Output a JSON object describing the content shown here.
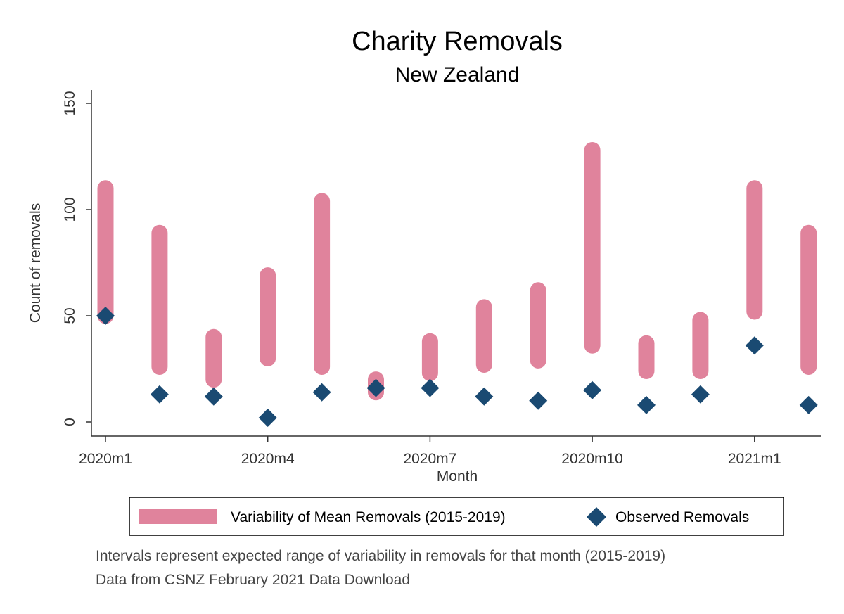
{
  "chart_data": {
    "type": "range-bar-with-scatter",
    "title": "Charity Removals",
    "subtitle": "New Zealand",
    "xlabel": "Month",
    "ylabel": "Count of removals",
    "ylim": [
      0,
      150
    ],
    "yticks": [
      0,
      50,
      100,
      150
    ],
    "xtick_labels": [
      {
        "index": 0,
        "label": "2020m1"
      },
      {
        "index": 3,
        "label": "2020m4"
      },
      {
        "index": 6,
        "label": "2020m7"
      },
      {
        "index": 9,
        "label": "2020m10"
      },
      {
        "index": 12,
        "label": "2021m1"
      }
    ],
    "categories": [
      "2020m1",
      "2020m2",
      "2020m3",
      "2020m4",
      "2020m5",
      "2020m6",
      "2020m7",
      "2020m8",
      "2020m9",
      "2020m10",
      "2020m11",
      "2020m12",
      "2021m1",
      "2021m2"
    ],
    "series": [
      {
        "name": "Variability of Mean Removals (2015-2019)",
        "type": "range",
        "color": "#e0839c",
        "low": [
          50,
          26,
          20,
          30,
          26,
          14,
          23,
          27,
          29,
          36,
          24,
          24,
          52,
          26
        ],
        "high": [
          110,
          89,
          40,
          69,
          104,
          20,
          38,
          54,
          62,
          128,
          37,
          48,
          110,
          89
        ]
      },
      {
        "name": "Observed Removals",
        "type": "scatter",
        "marker": "diamond",
        "color": "#1a4a72",
        "values": [
          50,
          13,
          12,
          2,
          14,
          16,
          16,
          12,
          10,
          15,
          8,
          13,
          36,
          8
        ]
      }
    ],
    "legend": {
      "position": "bottom",
      "entries": [
        "Variability of Mean Removals (2015-2019)",
        "Observed Removals"
      ]
    },
    "notes": [
      "Intervals represent expected range of variability in removals for that month (2015-2019)",
      "Data from CSNZ February 2021 Data Download"
    ],
    "grid": false
  }
}
